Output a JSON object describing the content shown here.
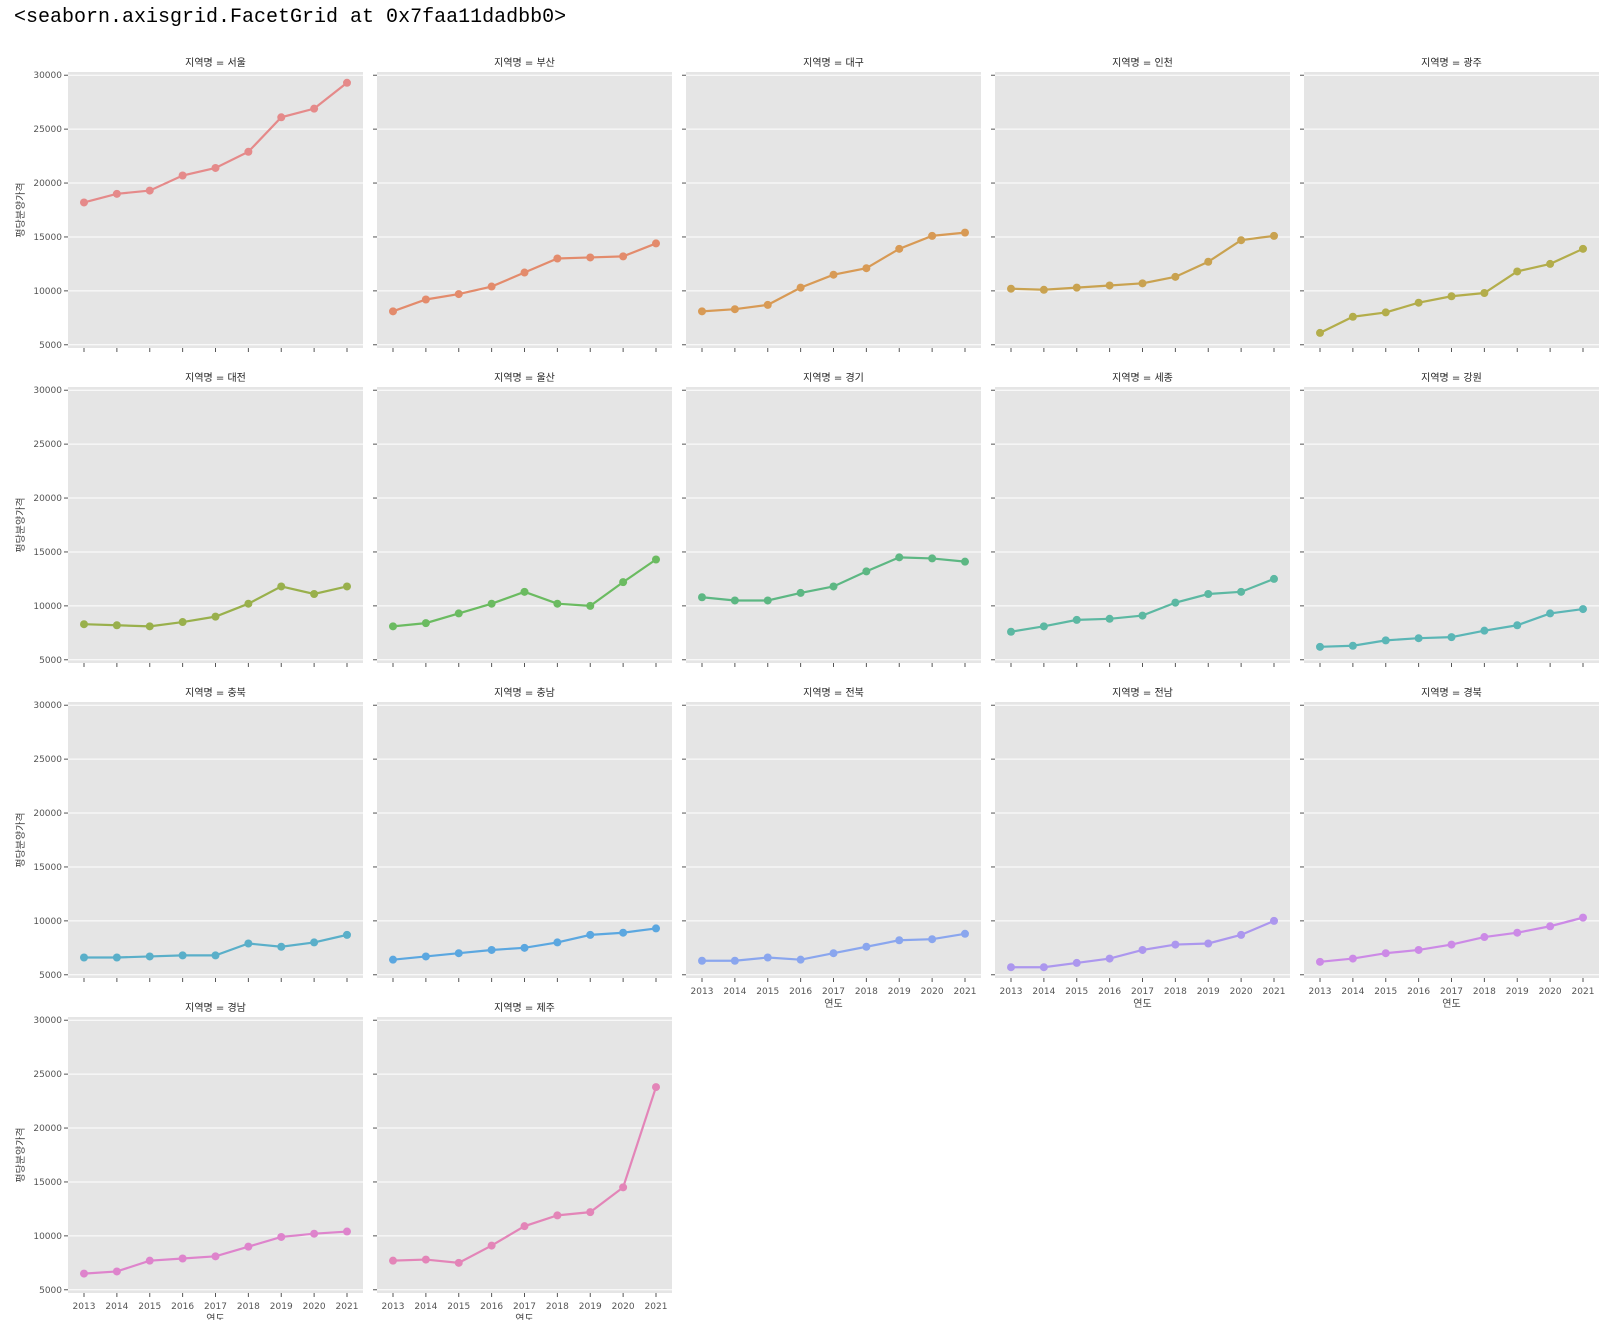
{
  "repr_text": "<seaborn.axisgrid.FacetGrid at 0x7faa11dadbb0>",
  "title_prefix": "지역명 = ",
  "chart_data": {
    "type": "line",
    "x": [
      "2013",
      "2014",
      "2015",
      "2016",
      "2017",
      "2018",
      "2019",
      "2020",
      "2021"
    ],
    "xlabel": "연도",
    "ylabel": "평당분양가격",
    "ylim": [
      4700,
      30300
    ],
    "yticks": [
      5000,
      10000,
      15000,
      20000,
      25000,
      30000
    ],
    "grid": true,
    "col_wrap": 5,
    "facet_var": "지역명",
    "series": [
      {
        "name": "서울",
        "color": "#e58a8a",
        "values": [
          18200,
          19000,
          19300,
          20700,
          21400,
          22900,
          26100,
          26900,
          29300
        ]
      },
      {
        "name": "부산",
        "color": "#e38b6c",
        "values": [
          8100,
          9200,
          9700,
          10400,
          11700,
          13000,
          13100,
          13200,
          14400
        ]
      },
      {
        "name": "대구",
        "color": "#d89a55",
        "values": [
          8100,
          8300,
          8700,
          10300,
          11500,
          12100,
          13900,
          15100,
          15400
        ]
      },
      {
        "name": "인천",
        "color": "#c9a250",
        "values": [
          10200,
          10100,
          10300,
          10500,
          10700,
          11300,
          12700,
          14700,
          15100
        ]
      },
      {
        "name": "광주",
        "color": "#b3ad4b",
        "values": [
          6100,
          7600,
          8000,
          8900,
          9500,
          9800,
          11800,
          12500,
          13900
        ]
      },
      {
        "name": "대전",
        "color": "#99b04c",
        "values": [
          8300,
          8200,
          8100,
          8500,
          9000,
          10200,
          11800,
          11100,
          11800
        ]
      },
      {
        "name": "울산",
        "color": "#6bbb61",
        "values": [
          8100,
          8400,
          9300,
          10200,
          11300,
          10200,
          10000,
          12200,
          14300
        ]
      },
      {
        "name": "경기",
        "color": "#5db783",
        "values": [
          10800,
          10500,
          10500,
          11200,
          11800,
          13200,
          14500,
          14400,
          14100
        ]
      },
      {
        "name": "세종",
        "color": "#5cb8a2",
        "values": [
          7600,
          8100,
          8700,
          8800,
          9100,
          10300,
          11100,
          11300,
          12500
        ]
      },
      {
        "name": "강원",
        "color": "#5bb6b6",
        "values": [
          6200,
          6300,
          6800,
          7000,
          7100,
          7700,
          8200,
          9300,
          9700
        ]
      },
      {
        "name": "충북",
        "color": "#5aafc9",
        "values": [
          6600,
          6600,
          6700,
          6800,
          6800,
          7900,
          7600,
          8000,
          8700
        ]
      },
      {
        "name": "충남",
        "color": "#5ba7e0",
        "values": [
          6400,
          6700,
          7000,
          7300,
          7500,
          8000,
          8700,
          8900,
          9300
        ]
      },
      {
        "name": "전북",
        "color": "#8aa6ee",
        "values": [
          6300,
          6300,
          6600,
          6400,
          7000,
          7600,
          8200,
          8300,
          8800
        ]
      },
      {
        "name": "전남",
        "color": "#ac97ee",
        "values": [
          5700,
          5700,
          6100,
          6500,
          7300,
          7800,
          7900,
          8700,
          10000
        ]
      },
      {
        "name": "경북",
        "color": "#cc8ae6",
        "values": [
          6200,
          6500,
          7000,
          7300,
          7800,
          8500,
          8900,
          9500,
          10300
        ]
      },
      {
        "name": "경남",
        "color": "#de84cc",
        "values": [
          6500,
          6700,
          7700,
          7900,
          8100,
          9000,
          9900,
          10200,
          10400
        ]
      },
      {
        "name": "제주",
        "color": "#e385b8",
        "values": [
          7700,
          7800,
          7500,
          9100,
          10900,
          11900,
          12200,
          14500,
          23800
        ]
      }
    ]
  }
}
